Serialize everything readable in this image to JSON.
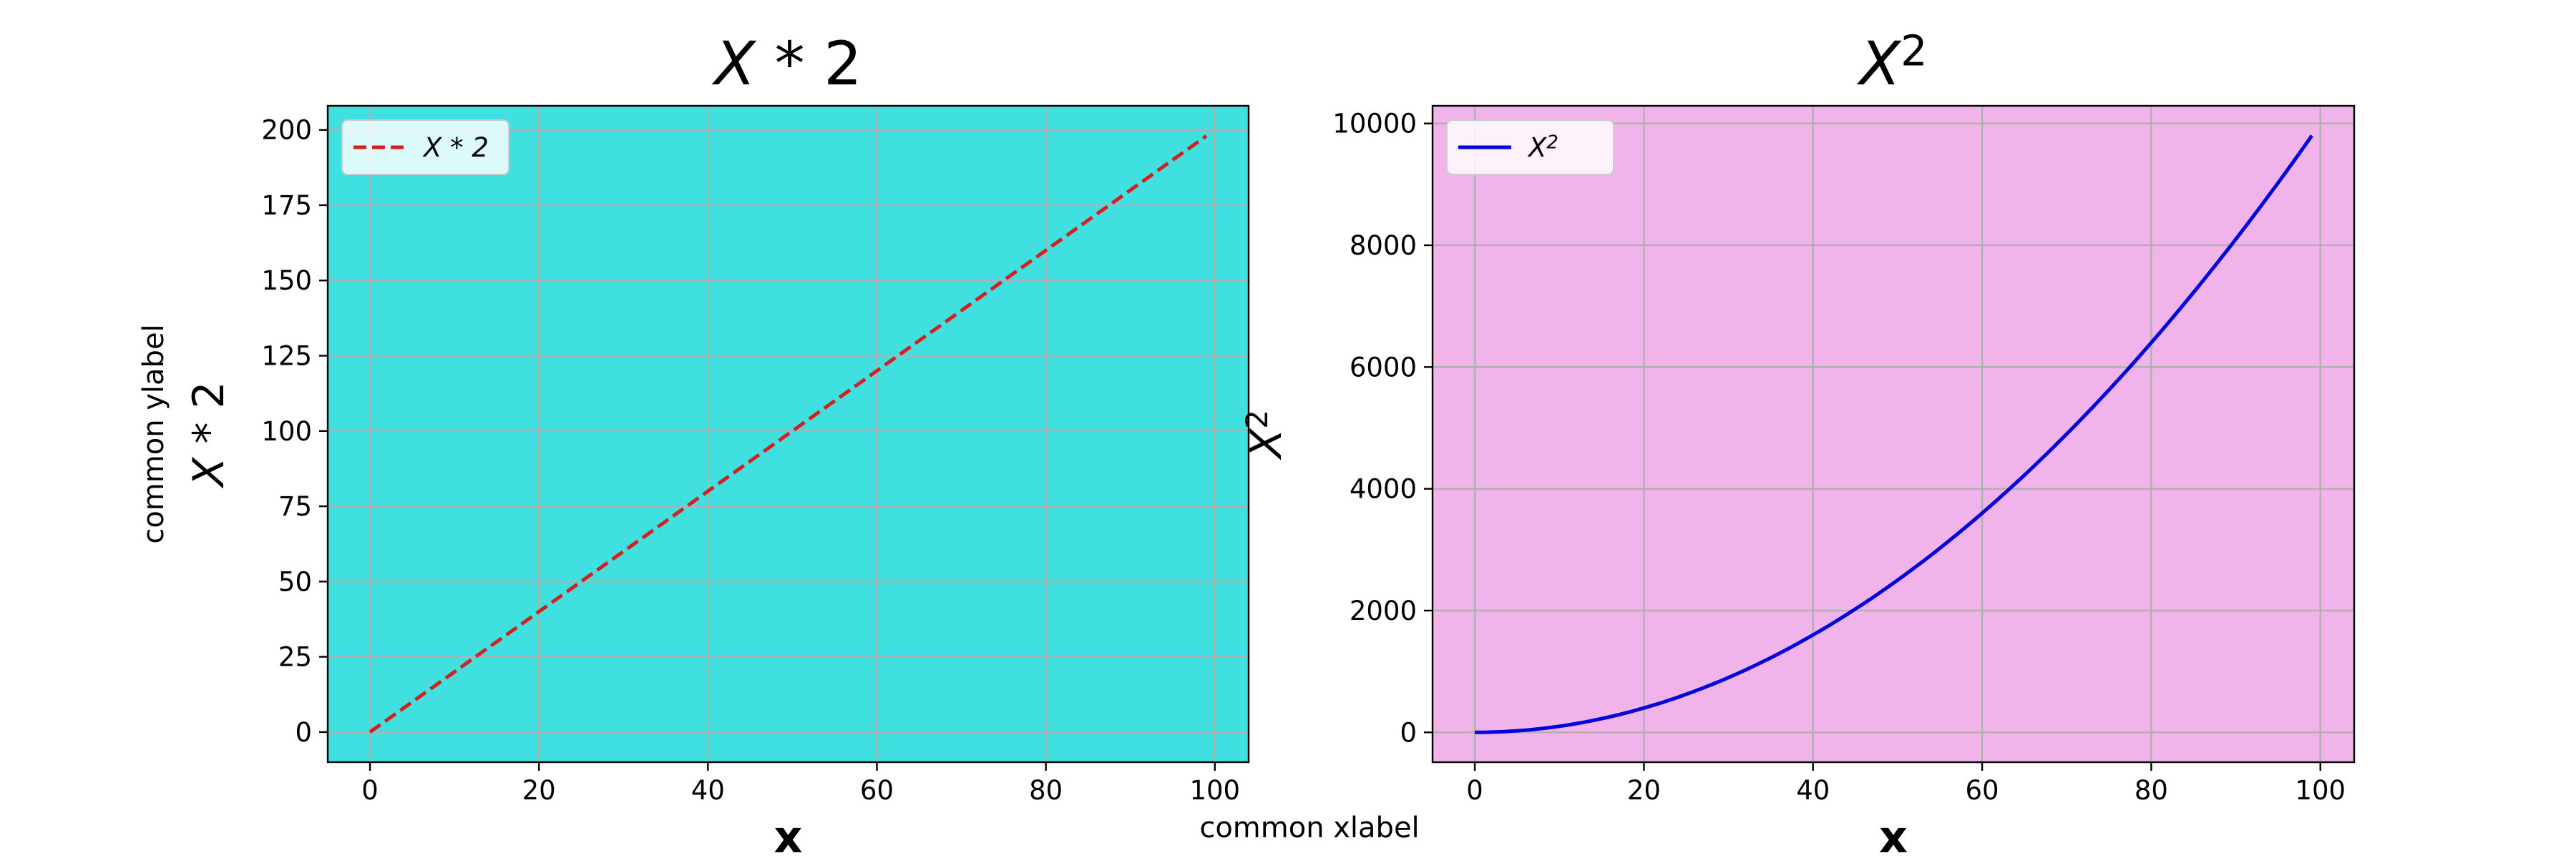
{
  "figure": {
    "common_xlabel": "common xlabel",
    "common_ylabel": "common ylabel"
  },
  "chart_data": [
    {
      "type": "line",
      "title": "X*2",
      "xlabel": "x",
      "ylabel": "X*2",
      "xlim": [
        -5,
        104
      ],
      "ylim": [
        -10,
        208
      ],
      "xticks": [
        0,
        20,
        40,
        60,
        80,
        100
      ],
      "yticks": [
        0,
        25,
        50,
        75,
        100,
        125,
        150,
        175,
        200
      ],
      "grid": true,
      "background": "#40e0e0",
      "legend": {
        "placement": "upper-left"
      },
      "series": [
        {
          "name": "X*2",
          "function": "2*x",
          "x_range": [
            0,
            99
          ],
          "color": "#d62020",
          "style": "dashed"
        }
      ]
    },
    {
      "type": "line",
      "title": "X²",
      "xlabel": "x",
      "ylabel": "X²",
      "xlim": [
        -5,
        104
      ],
      "ylim": [
        -490,
        10290
      ],
      "xticks": [
        0,
        20,
        40,
        60,
        80,
        100
      ],
      "yticks": [
        0,
        2000,
        4000,
        6000,
        8000,
        10000
      ],
      "grid": true,
      "background": "#f0b4ea",
      "legend": {
        "placement": "upper-left"
      },
      "series": [
        {
          "name": "X²",
          "function": "x^2",
          "x_range": [
            0,
            99
          ],
          "color": "#0000e0",
          "style": "solid"
        }
      ]
    }
  ]
}
